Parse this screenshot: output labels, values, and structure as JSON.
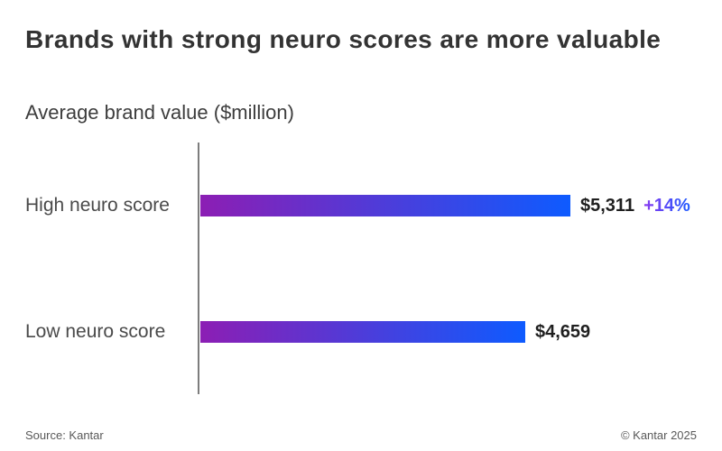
{
  "title": "Brands with strong neuro scores are more valuable",
  "subtitle": "Average brand value ($million)",
  "footer": {
    "source": "Source: Kantar",
    "copyright": "© Kantar 2025"
  },
  "colors": {
    "bar_gradient_start": "#8c1eb4",
    "bar_gradient_end": "#0e5bff",
    "change_gradient_start": "#8a3bf0",
    "change_gradient_end": "#1d5bff",
    "title_text": "#333333",
    "label_text": "#4a4a4a",
    "value_text": "#1f1f1f",
    "axis_line": "#7d7d7d",
    "footer_text": "#595959"
  },
  "chart_data": {
    "type": "bar",
    "orientation": "horizontal",
    "title": "Brands with strong neuro scores are more valuable",
    "axis_label": "Average brand value ($million)",
    "categories": [
      "High neuro score",
      "Low neuro score"
    ],
    "values": [
      5311,
      4659
    ],
    "value_labels": [
      "$5,311",
      "$4,659"
    ],
    "change_labels": [
      "+14%",
      null
    ],
    "xlim": [
      0,
      5311
    ],
    "grid": false,
    "legend": false,
    "annotations": [
      {
        "category": "High neuro score",
        "label": "+14%",
        "meaning": "high vs low difference"
      }
    ]
  }
}
